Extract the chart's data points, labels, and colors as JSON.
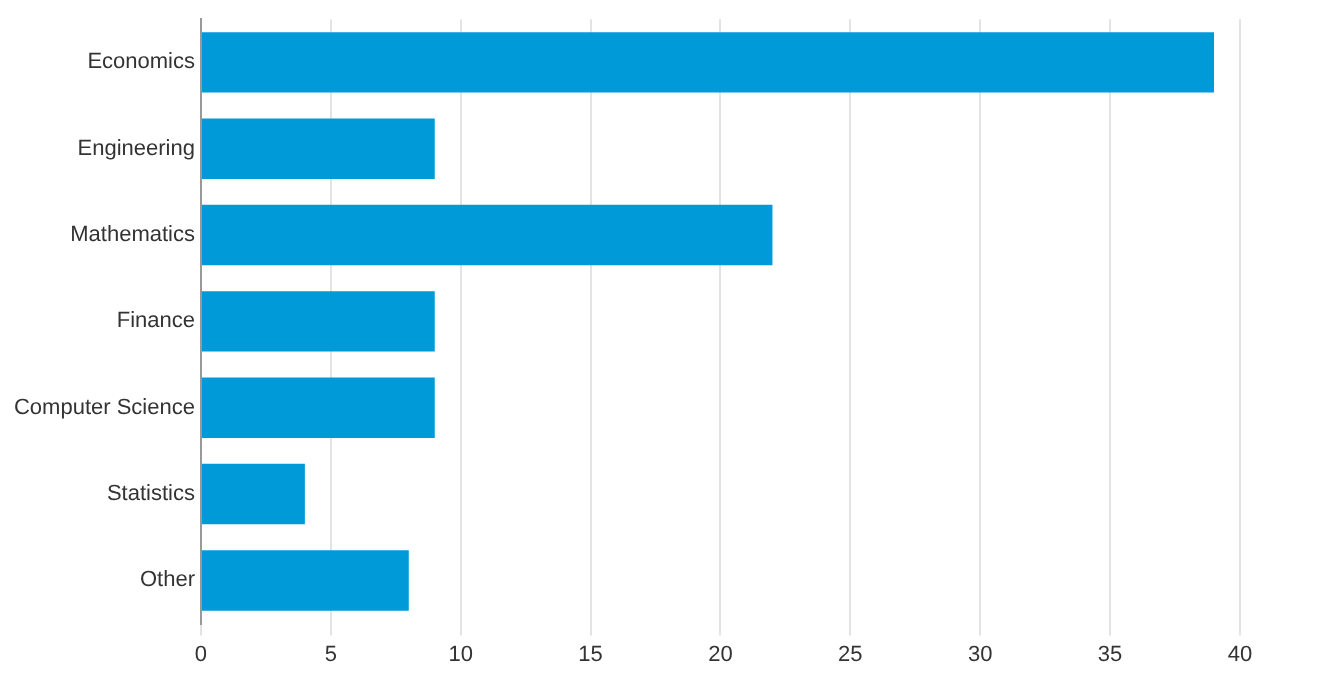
{
  "chart_data": {
    "type": "bar",
    "orientation": "horizontal",
    "categories": [
      "Economics",
      "Engineering",
      "Mathematics",
      "Finance",
      "Computer Science",
      "Statistics",
      "Other"
    ],
    "values": [
      39,
      9,
      22,
      9,
      9,
      4,
      8
    ],
    "color": "#009ad9",
    "xlim": [
      0,
      40
    ],
    "xticks": [
      0,
      5,
      10,
      15,
      20,
      25,
      30,
      35,
      40
    ],
    "grid": "x"
  }
}
